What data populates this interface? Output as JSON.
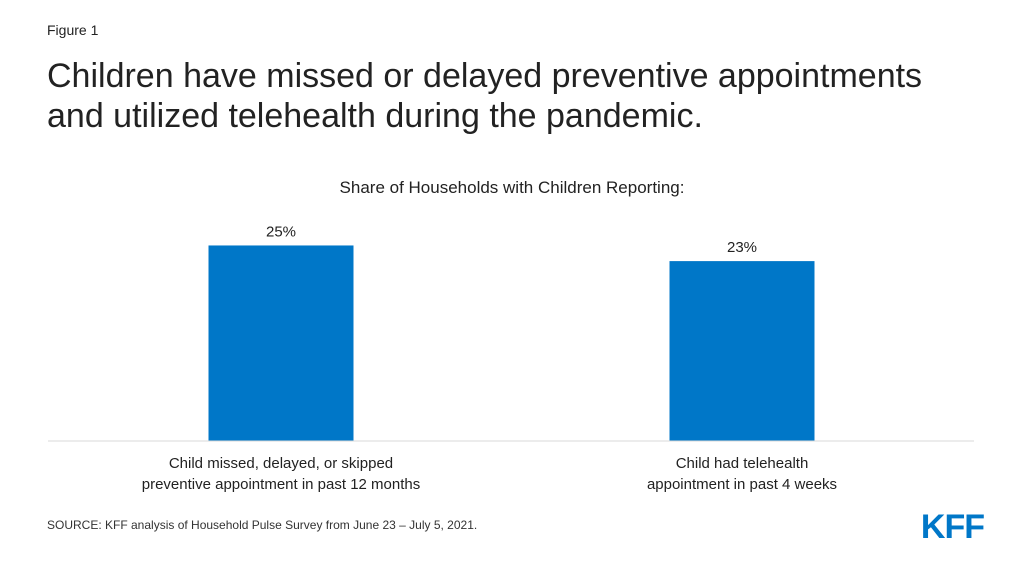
{
  "figure_label": "Figure 1",
  "title": "Children have missed or delayed preventive appointments and utilized telehealth during the pandemic.",
  "source": "SOURCE: KFF analysis of Household Pulse Survey from June 23 – July 5, 2021.",
  "logo_text": "KFF",
  "colors": {
    "bar": "#0077c8",
    "axis": "#d9d9d9",
    "text": "#222222",
    "brand": "#0077c8"
  },
  "chart_data": {
    "type": "bar",
    "subtitle": "Share of Households with Children Reporting:",
    "categories": [
      [
        "Child missed, delayed, or skipped",
        "preventive appointment in past 12 months"
      ],
      [
        "Child had telehealth",
        "appointment in past 4 weeks"
      ]
    ],
    "values": [
      25,
      23
    ],
    "data_labels": [
      "25%",
      "23%"
    ],
    "ylim": [
      0,
      28
    ],
    "xlabel": "",
    "ylabel": "",
    "grid": false,
    "legend": "none"
  }
}
